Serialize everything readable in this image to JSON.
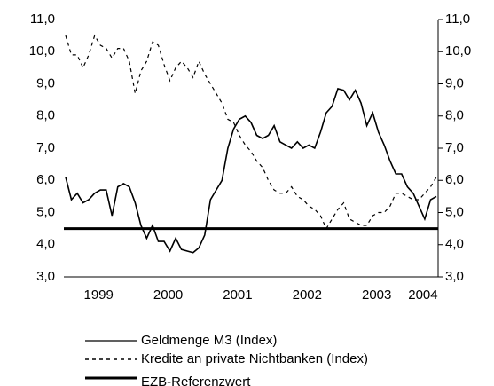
{
  "chart_data": {
    "type": "line",
    "categories": [
      null,
      null,
      null,
      null,
      null,
      null,
      "1999",
      null,
      null,
      null,
      null,
      null,
      null,
      null,
      null,
      null,
      null,
      null,
      "2000",
      null,
      null,
      null,
      null,
      null,
      null,
      null,
      null,
      null,
      null,
      null,
      "2001",
      null,
      null,
      null,
      null,
      null,
      null,
      null,
      null,
      null,
      null,
      null,
      "2002",
      null,
      null,
      null,
      null,
      null,
      null,
      null,
      null,
      null,
      null,
      null,
      "2003",
      null,
      null,
      null,
      null,
      null,
      null,
      null,
      "2004",
      null,
      null
    ],
    "series": [
      {
        "name": "Geldmenge M3 (Index)",
        "color": "#000000",
        "dash": "solid",
        "values": [
          6.1,
          5.4,
          5.6,
          5.3,
          5.4,
          5.6,
          5.7,
          5.7,
          4.9,
          5.8,
          5.9,
          5.8,
          5.3,
          4.6,
          4.2,
          4.6,
          4.1,
          4.1,
          3.8,
          4.2,
          3.85,
          3.8,
          3.75,
          3.9,
          4.3,
          5.4,
          5.7,
          6.0,
          7.0,
          7.6,
          7.9,
          8.0,
          7.8,
          7.4,
          7.3,
          7.4,
          7.7,
          7.2,
          7.1,
          7.0,
          7.2,
          7.0,
          7.1,
          7.0,
          7.5,
          8.1,
          8.3,
          8.85,
          8.8,
          8.5,
          8.8,
          8.4,
          7.7,
          8.1,
          7.5,
          7.1,
          6.6,
          6.2,
          6.2,
          5.8,
          5.6,
          5.2,
          4.8,
          5.4,
          5.5
        ]
      },
      {
        "name": "Kredite an private Nichtbanken (Index)",
        "color": "#000000",
        "dash": "dotted",
        "values": [
          10.5,
          9.9,
          9.9,
          9.5,
          9.9,
          10.5,
          10.2,
          10.1,
          9.8,
          10.1,
          10.1,
          9.7,
          8.7,
          9.4,
          9.7,
          10.3,
          10.2,
          9.6,
          9.1,
          9.5,
          9.7,
          9.5,
          9.2,
          9.7,
          9.3,
          9.0,
          8.7,
          8.4,
          7.9,
          7.8,
          7.4,
          7.1,
          6.9,
          6.6,
          6.4,
          6.0,
          5.7,
          5.6,
          5.6,
          5.8,
          5.5,
          5.4,
          5.2,
          5.1,
          4.9,
          4.5,
          4.8,
          5.1,
          5.3,
          4.8,
          4.7,
          4.6,
          4.6,
          4.9,
          5.0,
          5.0,
          5.2,
          5.6,
          5.6,
          5.5,
          5.4,
          5.4,
          5.6,
          5.8,
          6.1
        ]
      }
    ],
    "reference_line": {
      "name": "EZB-Referenzwert",
      "value": 4.5,
      "color": "#000000"
    },
    "ylim": [
      3,
      11
    ],
    "yticks": [
      {
        "value": 3,
        "label": "3,0"
      },
      {
        "value": 4,
        "label": "4,0"
      },
      {
        "value": 5,
        "label": "5,0"
      },
      {
        "value": 6,
        "label": "6,0"
      },
      {
        "value": 7,
        "label": "7,0"
      },
      {
        "value": 8,
        "label": "8,0"
      },
      {
        "value": 9,
        "label": "9,0"
      },
      {
        "value": 10,
        "label": "10,0"
      },
      {
        "value": 11,
        "label": "11,0"
      }
    ],
    "y2lim": [
      3,
      11
    ],
    "y2ticks": [
      {
        "value": 3,
        "label": "3,0"
      },
      {
        "value": 4,
        "label": "4,0"
      },
      {
        "value": 5,
        "label": "5,0"
      },
      {
        "value": 6,
        "label": "6,0"
      },
      {
        "value": 7,
        "label": "7,0"
      },
      {
        "value": 8,
        "label": "8,0"
      },
      {
        "value": 9,
        "label": "9,0"
      },
      {
        "value": 10,
        "label": "10,0"
      },
      {
        "value": 11,
        "label": "11,0"
      }
    ]
  }
}
